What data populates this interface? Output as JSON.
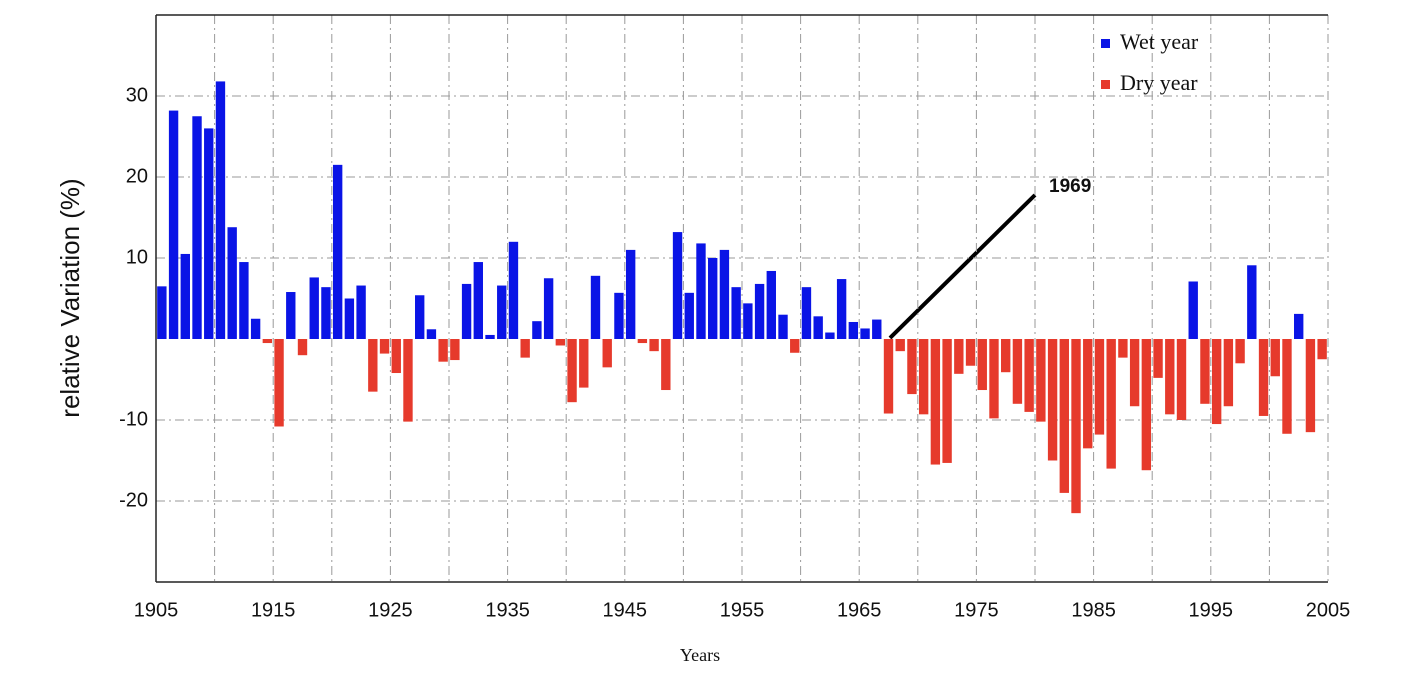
{
  "chart_data": {
    "type": "bar",
    "y_label": "relative Variation (%)",
    "x_label": "Years",
    "annotation": "1969",
    "legend": [
      {
        "name": "Wet year",
        "color": "#0a14e6"
      },
      {
        "name": "Dry year",
        "color": "#e63a2c"
      }
    ],
    "x": [
      1905,
      1906,
      1907,
      1908,
      1909,
      1910,
      1911,
      1912,
      1913,
      1914,
      1915,
      1916,
      1917,
      1918,
      1919,
      1920,
      1921,
      1922,
      1923,
      1924,
      1925,
      1926,
      1927,
      1928,
      1929,
      1930,
      1931,
      1932,
      1933,
      1934,
      1935,
      1936,
      1937,
      1938,
      1939,
      1940,
      1941,
      1942,
      1943,
      1944,
      1945,
      1946,
      1947,
      1948,
      1949,
      1950,
      1951,
      1952,
      1953,
      1954,
      1955,
      1956,
      1957,
      1958,
      1959,
      1960,
      1961,
      1962,
      1963,
      1964,
      1965,
      1966,
      1967,
      1968,
      1969,
      1970,
      1971,
      1972,
      1973,
      1974,
      1975,
      1976,
      1977,
      1978,
      1979,
      1980,
      1981,
      1982,
      1983,
      1984,
      1985,
      1986,
      1987,
      1988,
      1989,
      1990,
      1991,
      1992,
      1993,
      1994,
      1995,
      1996,
      1997,
      1998,
      1999,
      2000,
      2001,
      2002,
      2003,
      2004
    ],
    "values": [
      6.5,
      28.2,
      10.5,
      27.5,
      26,
      31.8,
      13.8,
      9.5,
      2.5,
      -0.5,
      -10.8,
      5.8,
      -2,
      7.6,
      6.4,
      21.5,
      5,
      6.6,
      -6.5,
      -1.8,
      -4.2,
      -10.2,
      5.4,
      1.2,
      -2.8,
      -2.6,
      6.8,
      9.5,
      0.5,
      6.6,
      12,
      -2.3,
      2.2,
      7.5,
      -0.8,
      -7.8,
      -6,
      7.8,
      -3.5,
      5.7,
      11,
      -0.5,
      -1.5,
      -6.3,
      13.2,
      5.7,
      11.8,
      10,
      11,
      6.4,
      4.4,
      6.8,
      8.4,
      3,
      -1.7,
      6.4,
      2.8,
      0.8,
      7.4,
      2.1,
      1.3,
      2.4,
      -9.2,
      -1.5,
      -6.8,
      -9.3,
      -15.5,
      -15.3,
      -4.3,
      -3.3,
      -6.3,
      -9.8,
      -4.1,
      -8,
      -9,
      -10.2,
      -15,
      -19,
      -21.5,
      -13.5,
      -11.8,
      -16,
      -2.3,
      -8.3,
      -16.2,
      -4.8,
      -9.3,
      -10,
      7.1,
      -8,
      -10.5,
      -8.3,
      -3,
      9.1,
      -9.5,
      -4.6,
      -11.7,
      3.1,
      -11.5,
      -2.5
    ],
    "xlim": [
      1905,
      2005
    ],
    "xticks": [
      1905,
      1915,
      1925,
      1935,
      1945,
      1955,
      1965,
      1975,
      1985,
      1995,
      2005
    ],
    "xminor_grid": [
      1910,
      1920,
      1930,
      1940,
      1950,
      1960,
      1970,
      1980,
      1990,
      2000
    ],
    "ylim": [
      -30,
      40
    ],
    "yticks": [
      -20,
      -10,
      10,
      20,
      30
    ],
    "grid": true
  }
}
